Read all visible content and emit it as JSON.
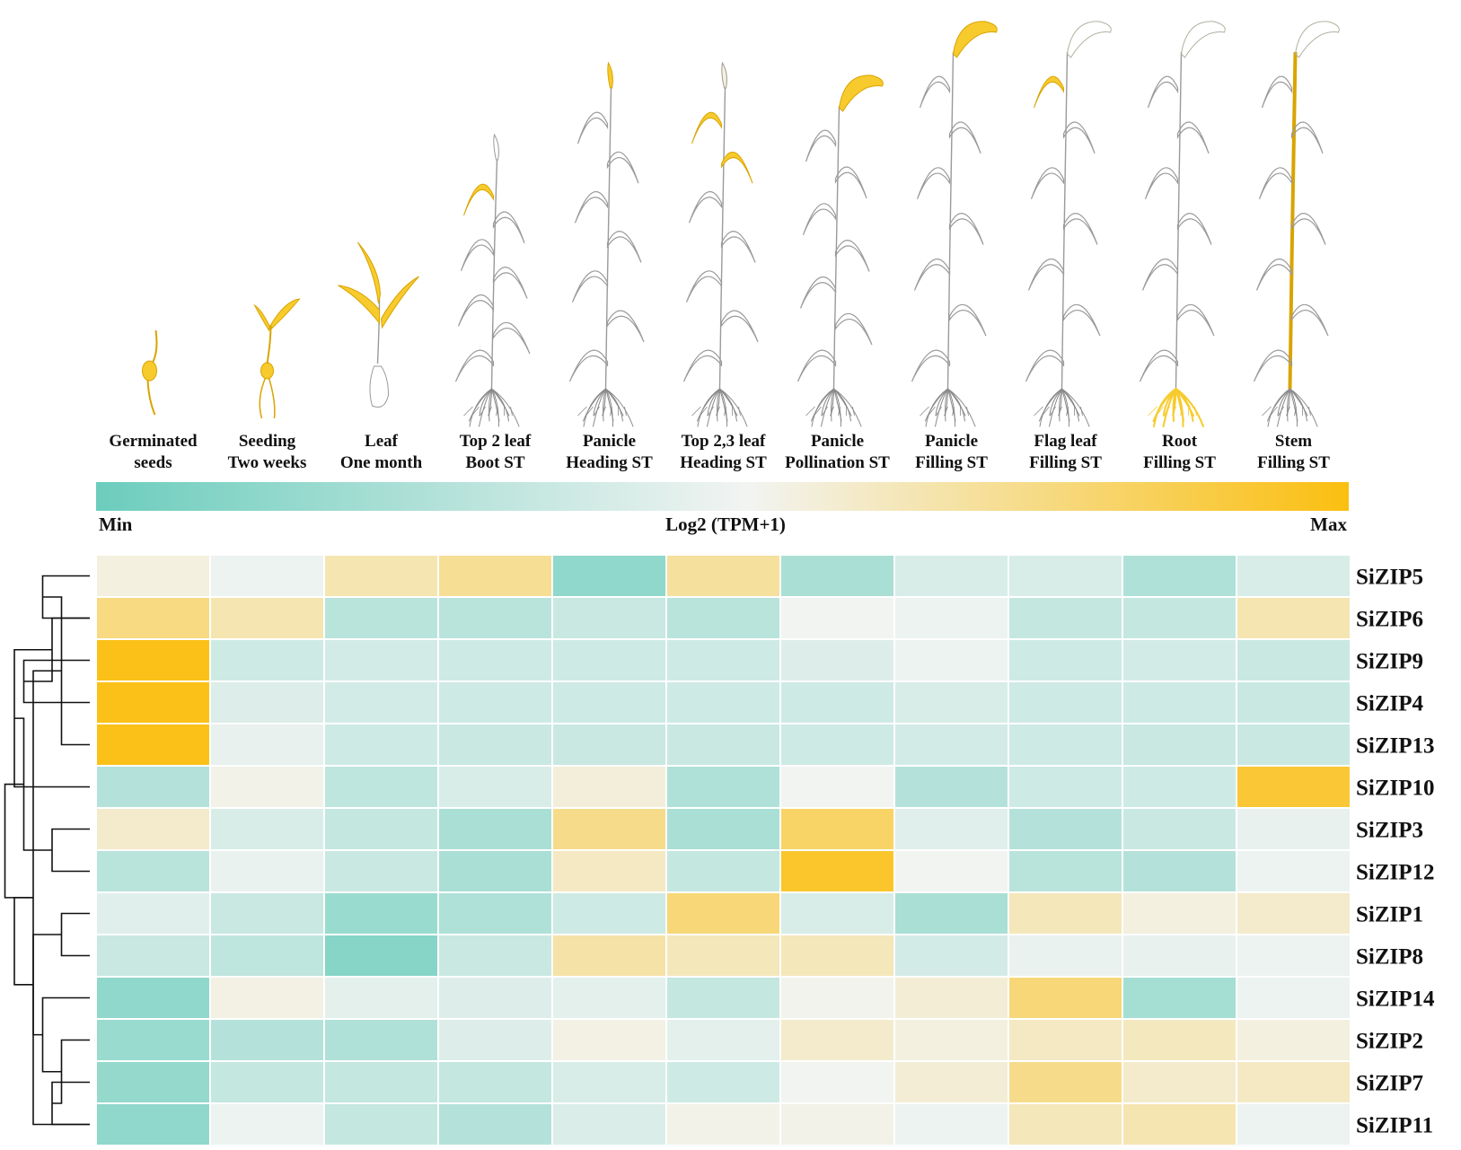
{
  "chart_data": {
    "type": "heatmap",
    "title": "",
    "colorbar": {
      "label": "Log2 (TPM+1)",
      "min_label": "Min",
      "max_label": "Max",
      "colors": [
        "#6ccdbd",
        "#f2f4f2",
        "#fbbf10"
      ]
    },
    "columns": [
      {
        "line1": "Germinated",
        "line2": "seeds",
        "highlight": "seed"
      },
      {
        "line1": "Seeding",
        "line2": "Two weeks",
        "highlight": "seedling"
      },
      {
        "line1": "Leaf",
        "line2": "One month",
        "highlight": "young-leaves"
      },
      {
        "line1": "Top 2 leaf",
        "line2": "Boot ST",
        "highlight": "top2-leaf"
      },
      {
        "line1": "Panicle",
        "line2": "Heading ST",
        "highlight": "upright-panicle"
      },
      {
        "line1": "Top 2,3 leaf",
        "line2": "Heading ST",
        "highlight": "top23-leaves"
      },
      {
        "line1": "Panicle",
        "line2": "Pollination ST",
        "highlight": "bent-panicle"
      },
      {
        "line1": "Panicle",
        "line2": "Filling ST",
        "highlight": "bent-panicle"
      },
      {
        "line1": "Flag leaf",
        "line2": "Filling ST",
        "highlight": "flag-leaf"
      },
      {
        "line1": "Root",
        "line2": "Filling ST",
        "highlight": "root"
      },
      {
        "line1": "Stem",
        "line2": "Filling ST",
        "highlight": "stem"
      }
    ],
    "rows": [
      "SiZIP5",
      "SiZIP6",
      "SiZIP9",
      "SiZIP4",
      "SiZIP13",
      "SiZIP10",
      "SiZIP3",
      "SiZIP12",
      "SiZIP1",
      "SiZIP8",
      "SiZIP14",
      "SiZIP2",
      "SiZIP7",
      "SiZIP11"
    ],
    "values": [
      [
        0.56,
        0.5,
        0.66,
        0.72,
        0.14,
        0.7,
        0.24,
        0.42,
        0.42,
        0.26,
        0.42
      ],
      [
        0.76,
        0.66,
        0.3,
        0.3,
        0.36,
        0.3,
        0.52,
        0.5,
        0.34,
        0.34,
        0.66
      ],
      [
        0.98,
        0.38,
        0.4,
        0.38,
        0.38,
        0.38,
        0.44,
        0.5,
        0.38,
        0.4,
        0.36
      ],
      [
        0.98,
        0.44,
        0.4,
        0.38,
        0.38,
        0.38,
        0.38,
        0.42,
        0.38,
        0.38,
        0.36
      ],
      [
        0.98,
        0.48,
        0.38,
        0.36,
        0.36,
        0.36,
        0.38,
        0.4,
        0.38,
        0.36,
        0.36
      ],
      [
        0.28,
        0.54,
        0.32,
        0.42,
        0.57,
        0.26,
        0.52,
        0.28,
        0.38,
        0.38,
        0.92
      ],
      [
        0.6,
        0.42,
        0.34,
        0.24,
        0.74,
        0.24,
        0.82,
        0.45,
        0.28,
        0.36,
        0.48
      ],
      [
        0.3,
        0.49,
        0.36,
        0.24,
        0.62,
        0.34,
        0.94,
        0.52,
        0.3,
        0.28,
        0.5
      ],
      [
        0.45,
        0.36,
        0.18,
        0.26,
        0.38,
        0.78,
        0.42,
        0.24,
        0.64,
        0.56,
        0.6
      ],
      [
        0.36,
        0.32,
        0.1,
        0.36,
        0.68,
        0.64,
        0.64,
        0.4,
        0.49,
        0.48,
        0.5
      ],
      [
        0.14,
        0.55,
        0.46,
        0.44,
        0.46,
        0.34,
        0.53,
        0.58,
        0.78,
        0.22,
        0.5
      ],
      [
        0.18,
        0.28,
        0.26,
        0.44,
        0.55,
        0.46,
        0.6,
        0.56,
        0.62,
        0.63,
        0.56
      ],
      [
        0.16,
        0.34,
        0.34,
        0.34,
        0.42,
        0.38,
        0.52,
        0.58,
        0.74,
        0.6,
        0.62
      ],
      [
        0.14,
        0.5,
        0.34,
        0.28,
        0.43,
        0.54,
        0.54,
        0.5,
        0.64,
        0.66,
        0.5
      ]
    ],
    "dendrogram": [
      [
        5,
        0,
        1
      ],
      [
        7,
        2,
        3
      ],
      [
        3,
        4,
        14
      ],
      [
        4,
        1,
        15
      ],
      [
        6,
        13,
        16
      ],
      [
        8,
        5,
        17
      ],
      [
        4,
        6,
        7
      ],
      [
        3,
        8,
        9
      ],
      [
        4,
        12,
        13
      ],
      [
        3,
        11,
        22
      ],
      [
        5,
        10,
        23
      ],
      [
        6,
        21,
        24
      ],
      [
        7,
        19,
        20
      ],
      [
        8,
        18,
        25
      ],
      [
        9,
        18,
        26
      ]
    ],
    "legend": "colorbar-top"
  }
}
